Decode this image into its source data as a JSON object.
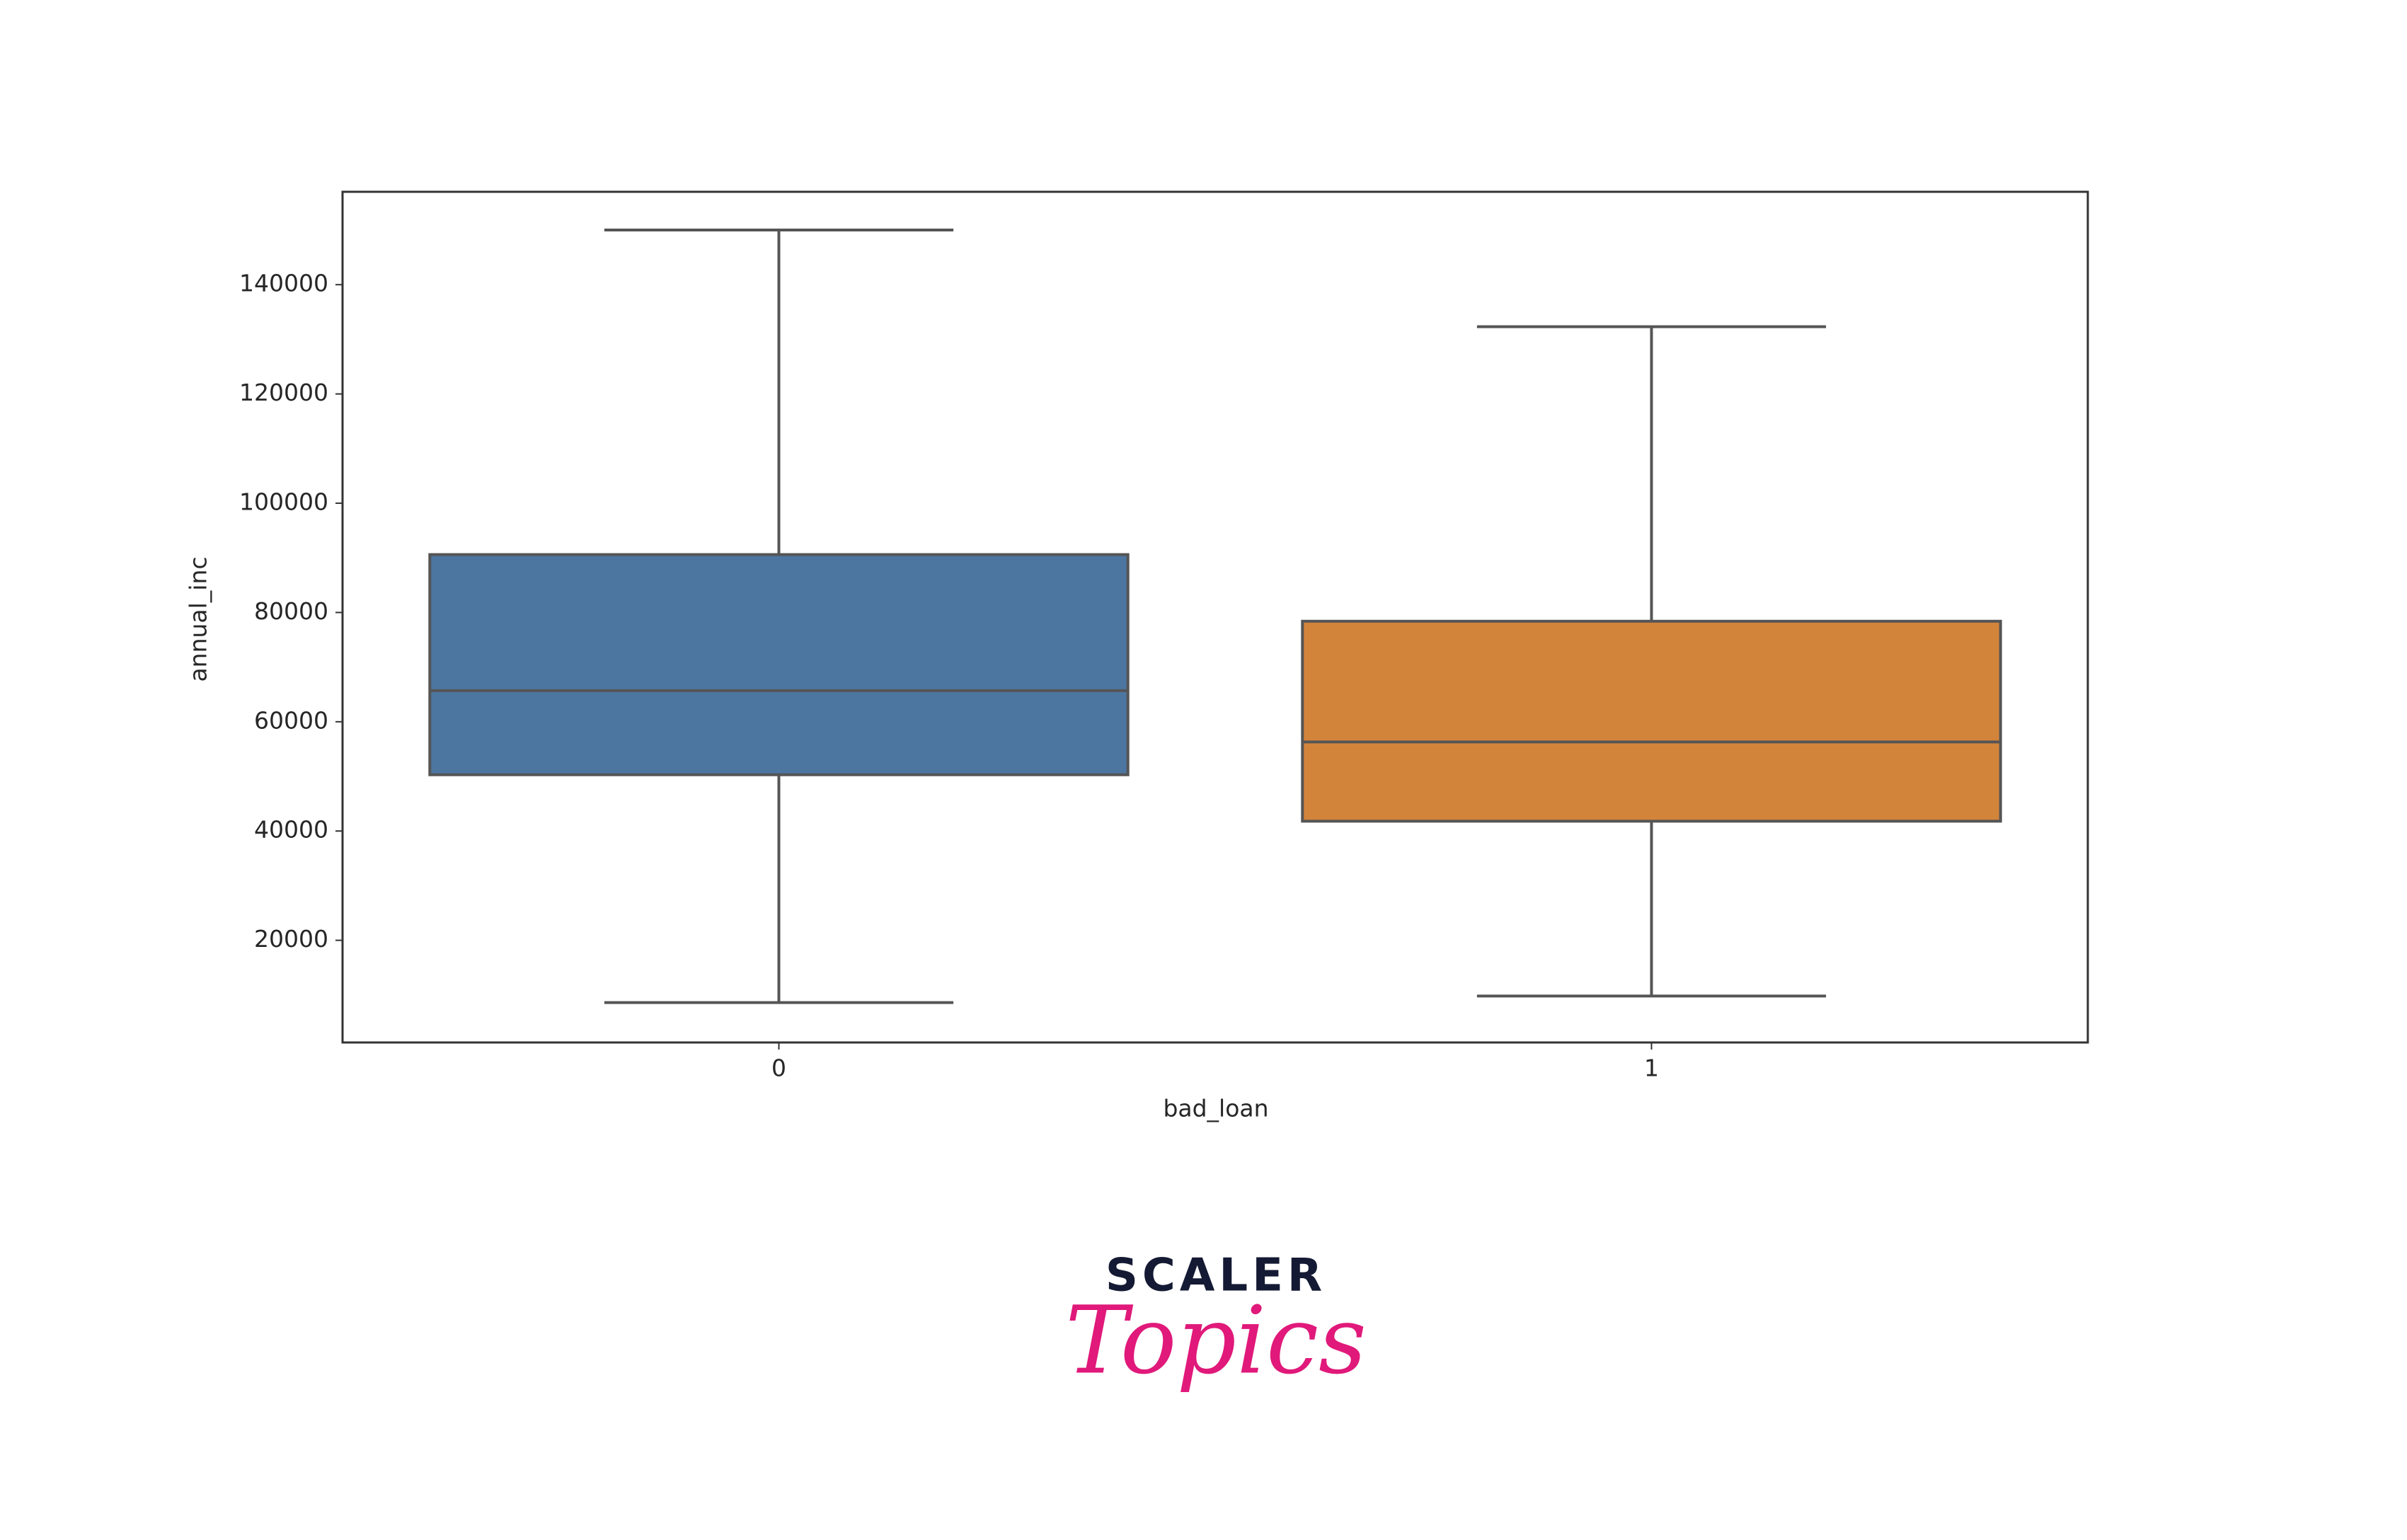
{
  "chart_data": {
    "type": "box",
    "x_label": "bad_loan",
    "y_label": "annual_inc",
    "categories": [
      "0",
      "1"
    ],
    "colors": [
      "#4c76a0",
      "#d3843b"
    ],
    "whislo": [
      8600,
      9800
    ],
    "q1": [
      50300,
      41800
    ],
    "med": [
      65700,
      56300
    ],
    "q3": [
      90600,
      78400
    ],
    "whishi": [
      150000,
      132300
    ],
    "ylim": [
      1300,
      157000
    ],
    "yticks": [
      20000,
      40000,
      60000,
      80000,
      100000,
      120000,
      140000
    ],
    "grid": false
  },
  "logo": {
    "brand": "SCALER",
    "tagline": "Topics"
  }
}
